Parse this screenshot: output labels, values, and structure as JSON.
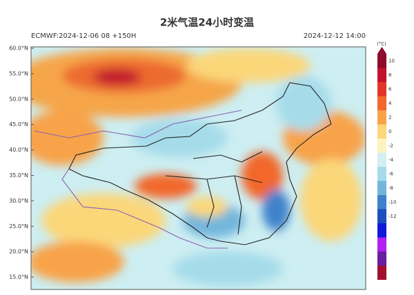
{
  "header": {
    "title": "2米气温24小时变温",
    "left": "ECMWF:2024-12-06 08 +150H",
    "right": "2024-12-12 14:00"
  },
  "map": {
    "lat_labels": [
      "60.0°N",
      "55.0°N",
      "50.0°N",
      "45.0°N",
      "40.0°N",
      "35.0°N",
      "30.0°N",
      "25.0°N",
      "20.0°N",
      "15.0°N"
    ]
  },
  "colorbar": {
    "unit": "(°C)",
    "levels": [
      10,
      8,
      6,
      4,
      2,
      0,
      -2,
      -4,
      -6,
      -8,
      -10,
      -12
    ],
    "colors": [
      "#8e0b2c",
      "#c3122c",
      "#e4352a",
      "#f2682c",
      "#f8a348",
      "#fbd77a",
      "#fdf3c0",
      "#d2f0f2",
      "#a6dcea",
      "#72b6dc",
      "#3f82cb",
      "#1c4ec0",
      "#1218d8",
      "#b020f0",
      "#6a1ea0",
      "#a0102c"
    ]
  }
}
